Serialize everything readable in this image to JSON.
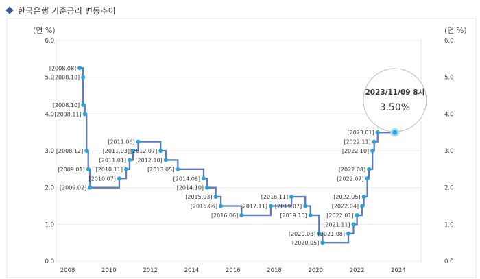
{
  "page": {
    "title": "한국은행 기준금리 변동추이"
  },
  "chart_data": {
    "type": "line",
    "title": "한국은행 기준금리 변동추이",
    "unit_left": "(연 %)",
    "unit_right": "(연 %)",
    "xlabel": "",
    "ylabel": "",
    "ylim": [
      0,
      6
    ],
    "xlim": [
      2007.45,
      2025.1
    ],
    "x_ticks": [
      2008,
      2010,
      2012,
      2014,
      2016,
      2018,
      2020,
      2022,
      2024
    ],
    "x_tick_labels": [
      "2008",
      "2010",
      "2012",
      "2014",
      "2016",
      "2018",
      "2020",
      "2022",
      "2024"
    ],
    "y_ticks": [
      0,
      1,
      2,
      3,
      4,
      5,
      6
    ],
    "y_tick_labels": [
      "0.0",
      "1.0",
      "2.0",
      "3.0",
      "4.0",
      "5.0",
      "6.0"
    ],
    "grid": true,
    "line_color": "#5b7ab5",
    "point_color": "#29a3dd",
    "series": [
      {
        "points": [
          {
            "date": "2008.08",
            "rate": 5.25,
            "label": "[2008.08]"
          },
          {
            "date": "2008.10",
            "rate": 5.0,
            "label": "[2008.10]"
          },
          {
            "date": "2008.10",
            "rate": 4.25,
            "label": "[2008.10]"
          },
          {
            "date": "2008.11",
            "rate": 4.0,
            "label": "[2008.11]"
          },
          {
            "date": "2008.12",
            "rate": 3.0,
            "label": "[2008.12]"
          },
          {
            "date": "2009.01",
            "rate": 2.5,
            "label": "[2009.01]"
          },
          {
            "date": "2009.02",
            "rate": 2.0,
            "label": "[2009.02]"
          },
          {
            "date": "2010.07",
            "rate": 2.25,
            "label": "[2010.07]"
          },
          {
            "date": "2010.11",
            "rate": 2.5,
            "label": "[2010.11]"
          },
          {
            "date": "2011.01",
            "rate": 2.75,
            "label": "[2011.01]"
          },
          {
            "date": "2011.03",
            "rate": 3.0,
            "label": "[2011.03]"
          },
          {
            "date": "2011.06",
            "rate": 3.25,
            "label": "[2011.06]"
          },
          {
            "date": "2012.07",
            "rate": 3.0,
            "label": "[2012.07]"
          },
          {
            "date": "2012.10",
            "rate": 2.75,
            "label": "[2012.10]"
          },
          {
            "date": "2013.05",
            "rate": 2.5,
            "label": "[2013.05]"
          },
          {
            "date": "2014.08",
            "rate": 2.25,
            "label": "[2014.08]"
          },
          {
            "date": "2014.10",
            "rate": 2.0,
            "label": "[2014.10]"
          },
          {
            "date": "2015.03",
            "rate": 1.75,
            "label": "[2015.03]"
          },
          {
            "date": "2015.06",
            "rate": 1.5,
            "label": "[2015.06]"
          },
          {
            "date": "2016.06",
            "rate": 1.25,
            "label": "[2016.06]"
          },
          {
            "date": "2017.11",
            "rate": 1.5,
            "label": "[2017.11]"
          },
          {
            "date": "2018.11",
            "rate": 1.75,
            "label": "[2018.11]"
          },
          {
            "date": "2019.07",
            "rate": 1.5,
            "label": "[2019.07]"
          },
          {
            "date": "2019.10",
            "rate": 1.25,
            "label": "[2019.10]"
          },
          {
            "date": "2020.03",
            "rate": 0.75,
            "label": "[2020.03]"
          },
          {
            "date": "2020.05",
            "rate": 0.5,
            "label": "[2020.05]"
          },
          {
            "date": "2021.08",
            "rate": 0.75,
            "label": "[2021.08]"
          },
          {
            "date": "2021.11",
            "rate": 1.0,
            "label": "[2021.11]"
          },
          {
            "date": "2022.01",
            "rate": 1.25,
            "label": "[2022.01]"
          },
          {
            "date": "2022.04",
            "rate": 1.5,
            "label": "[2022.04]"
          },
          {
            "date": "2022.05",
            "rate": 1.75,
            "label": "[2022.05]"
          },
          {
            "date": "2022.07",
            "rate": 2.25,
            "label": "[2022.07]"
          },
          {
            "date": "2022.08",
            "rate": 2.5,
            "label": "[2022.08]"
          },
          {
            "date": "2022.10",
            "rate": 3.0,
            "label": "[2022.10]"
          },
          {
            "date": "2022.11",
            "rate": 3.25,
            "label": "[2022.11]"
          },
          {
            "date": "2023.01",
            "rate": 3.5,
            "label": "[2023.01]"
          }
        ],
        "end": {
          "date": "2023.11",
          "rate": 3.5
        }
      }
    ],
    "tooltip": {
      "date_label": "2023/11/09 8시",
      "value_label": "3.50%"
    }
  }
}
